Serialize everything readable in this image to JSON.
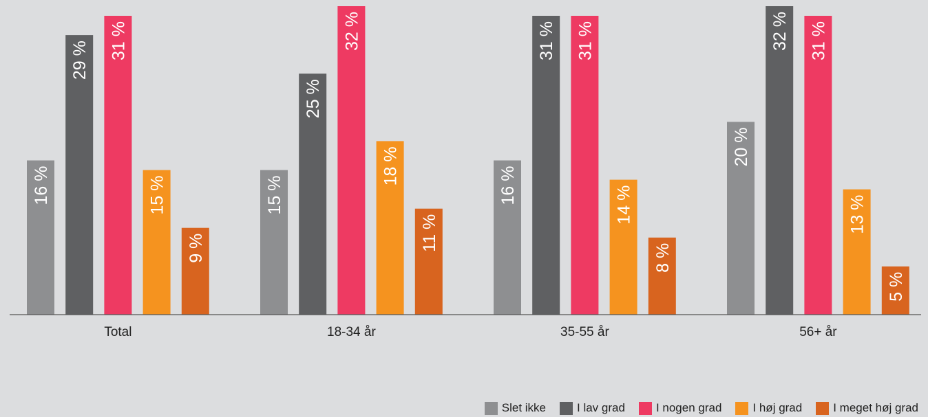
{
  "chart_data": {
    "type": "bar",
    "categories": [
      "Total",
      "18-34 år",
      "35-55 år",
      "56+ år"
    ],
    "value_suffix": " %",
    "series": [
      {
        "name": "Slet ikke",
        "color": "#8e8f91",
        "values": [
          16,
          15,
          16,
          20
        ]
      },
      {
        "name": "I lav grad",
        "color": "#5f6062",
        "values": [
          29,
          25,
          31,
          32
        ]
      },
      {
        "name": "I nogen grad",
        "color": "#ee3a62",
        "values": [
          31,
          32,
          31,
          31
        ]
      },
      {
        "name": "I høj grad",
        "color": "#f5931f",
        "values": [
          15,
          18,
          14,
          13
        ]
      },
      {
        "name": "I meget høj grad",
        "color": "#d8641f",
        "values": [
          9,
          11,
          8,
          5
        ]
      }
    ],
    "xlabel": "",
    "ylabel": "",
    "ylim": [
      0,
      32
    ],
    "grid": false,
    "legend_position": "bottom-right"
  }
}
